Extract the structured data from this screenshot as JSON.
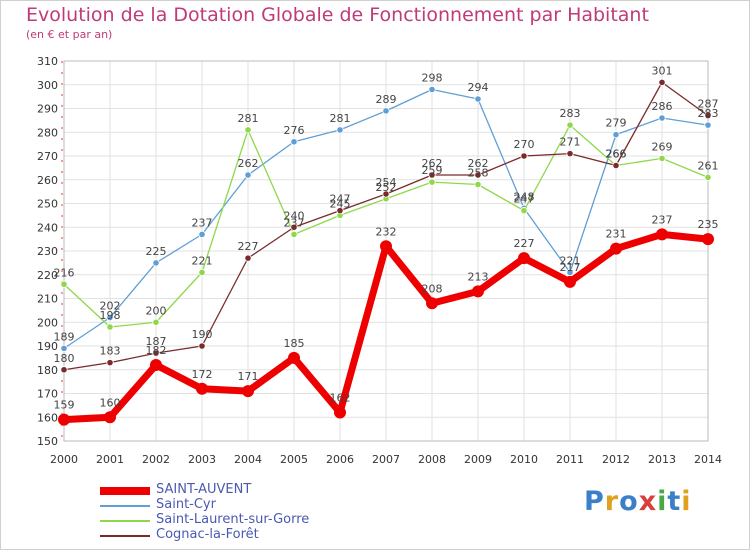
{
  "title": "Evolution de la Dotation Globale de Fonctionnement par Habitant",
  "subtitle": "(en € et par an)",
  "logo_text": "Proxiti",
  "chart_data": {
    "type": "line",
    "title": "Evolution de la Dotation Globale de Fonctionnement par Habitant",
    "subtitle": "(en € et par an)",
    "xlabel": "",
    "ylabel": "",
    "categories": [
      "2000",
      "2001",
      "2002",
      "2003",
      "2004",
      "2005",
      "2006",
      "2007",
      "2008",
      "2009",
      "2010",
      "2011",
      "2012",
      "2013",
      "2014"
    ],
    "ylim": [
      150,
      310
    ],
    "yticks": [
      150,
      160,
      170,
      180,
      190,
      200,
      210,
      220,
      230,
      240,
      250,
      260,
      270,
      280,
      290,
      300,
      310
    ],
    "grid": true,
    "legend_position": "bottom-left",
    "series": [
      {
        "name": "SAINT-AUVENT",
        "color": "#ee0000",
        "values": [
          159,
          160,
          182,
          172,
          171,
          185,
          162,
          232,
          208,
          213,
          227,
          217,
          231,
          237,
          235
        ]
      },
      {
        "name": "Saint-Cyr",
        "color": "#5f9fd6",
        "values": [
          189,
          202,
          225,
          237,
          262,
          276,
          281,
          289,
          298,
          294,
          248,
          221,
          279,
          286,
          283
        ]
      },
      {
        "name": "Saint-Laurent-sur-Gorre",
        "color": "#8fd84a",
        "values": [
          216,
          198,
          200,
          221,
          281,
          237,
          245,
          252,
          259,
          258,
          247,
          283,
          266,
          269,
          261
        ]
      },
      {
        "name": "Cognac-la-Forêt",
        "color": "#7a2a2a",
        "values": [
          180,
          183,
          187,
          190,
          227,
          240,
          247,
          254,
          262,
          262,
          270,
          271,
          266,
          301,
          287
        ]
      }
    ]
  }
}
